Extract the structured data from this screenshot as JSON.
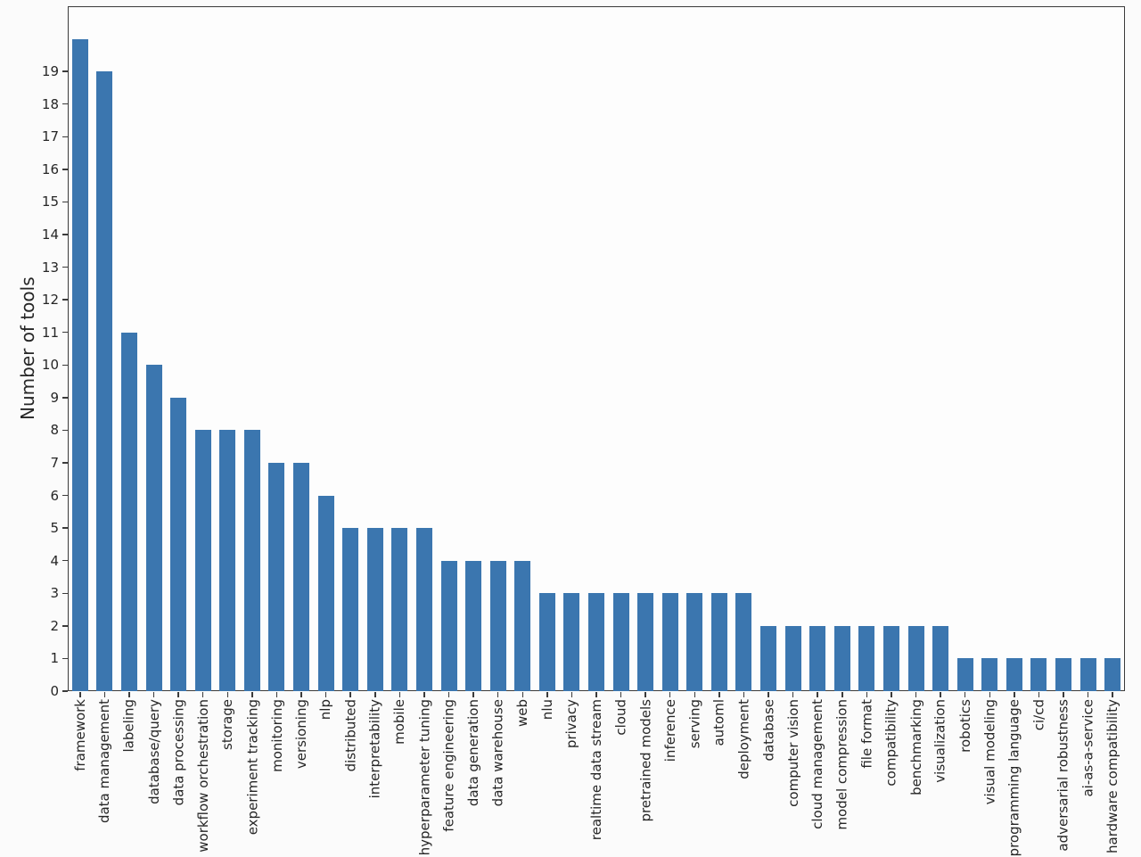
{
  "chart_data": {
    "type": "bar",
    "title": "",
    "xlabel": "",
    "ylabel": "Number of tools",
    "categories": [
      "framework",
      "data management",
      "labeling",
      "database/query",
      "data processing",
      "workflow orchestration",
      "storage",
      "experiment tracking",
      "monitoring",
      "versioning",
      "nlp",
      "distributed",
      "interpretability",
      "mobile",
      "hyperparameter tuning",
      "feature engineering",
      "data generation",
      "data warehouse",
      "web",
      "nlu",
      "privacy",
      "realtime data stream",
      "cloud",
      "pretrained models",
      "inference",
      "serving",
      "automl",
      "deployment",
      "database",
      "computer vision",
      "cloud management",
      "model compression",
      "file format",
      "compatibility",
      "benchmarking",
      "visualization",
      "robotics",
      "visual modeling",
      "programming language",
      "ci/cd",
      "adversarial robustness",
      "ai-as-a-service",
      "hardware compatibility"
    ],
    "values": [
      20,
      19,
      11,
      10,
      9,
      8,
      8,
      8,
      7,
      7,
      6,
      5,
      5,
      5,
      5,
      4,
      4,
      4,
      4,
      3,
      3,
      3,
      3,
      3,
      3,
      3,
      3,
      3,
      2,
      2,
      2,
      2,
      2,
      2,
      2,
      2,
      1,
      1,
      1,
      1,
      1,
      1,
      1
    ],
    "yticks": [
      0,
      1,
      2,
      3,
      4,
      5,
      6,
      7,
      8,
      9,
      10,
      11,
      12,
      13,
      14,
      15,
      16,
      17,
      18,
      19
    ],
    "ylim": [
      0,
      21
    ],
    "x_tick_rotation": 90,
    "grid": false,
    "legend": null,
    "colors": {
      "bar": "#3b76af",
      "text": "#262626",
      "axis": "#3b3b3b",
      "background": "#fbfbfb",
      "plot_background": "#fdfdfd"
    }
  }
}
